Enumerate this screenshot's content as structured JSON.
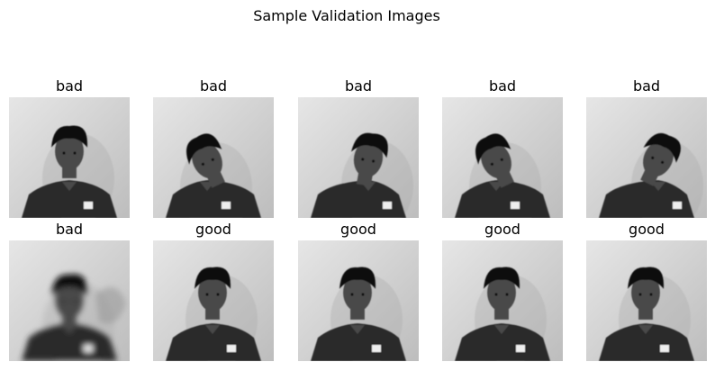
{
  "figure": {
    "title": "Sample Validation Images"
  },
  "samples": [
    {
      "label": "bad",
      "pose": "head-down"
    },
    {
      "label": "bad",
      "pose": "tilt-left"
    },
    {
      "label": "bad",
      "pose": "head-down-right"
    },
    {
      "label": "bad",
      "pose": "tilt-left"
    },
    {
      "label": "bad",
      "pose": "tilt-right"
    },
    {
      "label": "bad",
      "pose": "motion-blur"
    },
    {
      "label": "good",
      "pose": "upright"
    },
    {
      "label": "good",
      "pose": "upright"
    },
    {
      "label": "good",
      "pose": "upright"
    },
    {
      "label": "good",
      "pose": "upright"
    }
  ],
  "colors": {
    "wall": "#d9d9d9",
    "shirt": "#2a2a2a",
    "hair": "#111111",
    "skin": "#4a4a4a"
  }
}
